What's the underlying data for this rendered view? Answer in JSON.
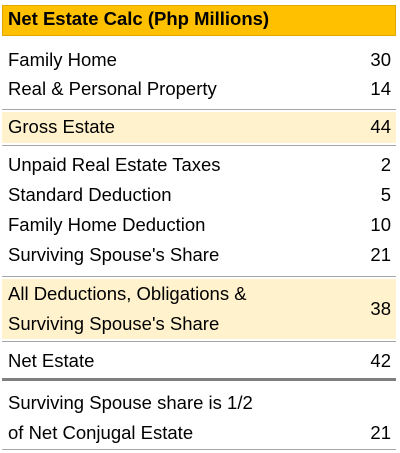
{
  "title": "Net Estate Calc (Php Millions)",
  "colors": {
    "title_fill": "#ffc000",
    "highlight_fill": "#fff2cc",
    "border": "#a6a6a6"
  },
  "rows": {
    "family_home": {
      "label": "Family Home",
      "value": "30"
    },
    "real_personal_property": {
      "label": "Real & Personal Property",
      "value": "14"
    },
    "gross_estate": {
      "label": "Gross Estate",
      "value": "44"
    },
    "unpaid_taxes": {
      "label": "Unpaid Real Estate Taxes",
      "value": "2"
    },
    "standard_deduction": {
      "label": "Standard Deduction",
      "value": "5"
    },
    "family_home_deduction": {
      "label": "Family Home Deduction",
      "value": "10"
    },
    "spouse_share": {
      "label": "Surviving Spouse's Share",
      "value": "21"
    },
    "all_deductions": {
      "label_line1": "All Deductions, Obligations &",
      "label_line2": "Surviving Spouse's Share",
      "value": "38"
    },
    "net_estate": {
      "label": "Net Estate",
      "value": "42"
    },
    "spouse_half": {
      "label_line1": "Surviving Spouse share is 1/2",
      "label_line2": "of Net Conjugal Estate",
      "value": "21"
    }
  }
}
